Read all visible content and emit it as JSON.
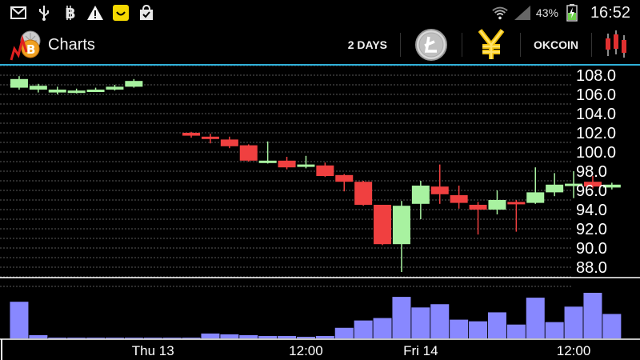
{
  "status_bar": {
    "battery_percent": "43%",
    "time": "16:52"
  },
  "action_bar": {
    "title": "Charts",
    "period_label": "2 DAYS",
    "exchange_label": "OKCOIN"
  },
  "chart_data": {
    "type": "candlestick",
    "yticks": [
      "108.0",
      "106.0",
      "104.0",
      "102.0",
      "100.0",
      "98.0",
      "96.0",
      "94.0",
      "92.0",
      "90.0",
      "88.0"
    ],
    "ylim": [
      86.0,
      109.0
    ],
    "xlabels": [
      "Thu 13",
      "12:00",
      "Fri 14",
      "12:00"
    ],
    "xlabel_positions": [
      7,
      15,
      21,
      29
    ],
    "candles": [
      {
        "i": 0,
        "open": 106.7,
        "close": 107.6,
        "high": 107.9,
        "low": 106.5
      },
      {
        "i": 1,
        "open": 106.5,
        "close": 106.9,
        "high": 107.1,
        "low": 106.2
      },
      {
        "i": 2,
        "open": 106.2,
        "close": 106.5,
        "high": 106.8,
        "low": 106.0
      },
      {
        "i": 3,
        "open": 106.2,
        "close": 106.4,
        "high": 106.6,
        "low": 106.1
      },
      {
        "i": 4,
        "open": 106.5,
        "close": 106.5,
        "high": 106.7,
        "low": 106.3
      },
      {
        "i": 5,
        "open": 106.5,
        "close": 106.8,
        "high": 107.0,
        "low": 106.4
      },
      {
        "i": 6,
        "open": 106.8,
        "close": 107.4,
        "high": 107.6,
        "low": 106.7
      },
      {
        "i": 7,
        "open": null
      },
      {
        "i": 8,
        "open": null
      },
      {
        "i": 9,
        "open": 102.0,
        "close": 101.7,
        "high": 102.1,
        "low": 101.5
      },
      {
        "i": 10,
        "open": 101.6,
        "close": 101.5,
        "high": 101.9,
        "low": 100.9
      },
      {
        "i": 11,
        "open": 101.3,
        "close": 100.6,
        "high": 101.6,
        "low": 100.4
      },
      {
        "i": 12,
        "open": 100.7,
        "close": 99.1,
        "high": 100.8,
        "low": 99.0
      },
      {
        "i": 13,
        "open": 99.0,
        "close": 99.1,
        "high": 101.1,
        "low": 98.8
      },
      {
        "i": 14,
        "open": 99.1,
        "close": 98.4,
        "high": 99.5,
        "low": 98.2
      },
      {
        "i": 15,
        "open": 98.5,
        "close": 98.7,
        "high": 99.6,
        "low": 98.3
      },
      {
        "i": 16,
        "open": 98.6,
        "close": 97.5,
        "high": 98.9,
        "low": 97.4
      },
      {
        "i": 17,
        "open": 97.6,
        "close": 96.9,
        "high": 97.7,
        "low": 95.9
      },
      {
        "i": 18,
        "open": 96.9,
        "close": 94.5,
        "high": 97.0,
        "low": 94.4
      },
      {
        "i": 19,
        "open": 94.5,
        "close": 90.4,
        "high": 94.5,
        "low": 90.3
      },
      {
        "i": 20,
        "open": 90.4,
        "close": 94.4,
        "high": 94.9,
        "low": 87.5
      },
      {
        "i": 21,
        "open": 94.6,
        "close": 96.5,
        "high": 97.0,
        "low": 93.0
      },
      {
        "i": 22,
        "open": 96.4,
        "close": 95.6,
        "high": 98.7,
        "low": 94.6
      },
      {
        "i": 23,
        "open": 95.5,
        "close": 94.7,
        "high": 96.5,
        "low": 94.1
      },
      {
        "i": 24,
        "open": 94.5,
        "close": 94.0,
        "high": 94.8,
        "low": 91.4
      },
      {
        "i": 25,
        "open": 94.0,
        "close": 95.0,
        "high": 96.0,
        "low": 93.5
      },
      {
        "i": 26,
        "open": 94.8,
        "close": 94.7,
        "high": 95.0,
        "low": 91.7
      },
      {
        "i": 27,
        "open": 94.7,
        "close": 95.8,
        "high": 98.4,
        "low": 94.6
      },
      {
        "i": 28,
        "open": 95.8,
        "close": 96.6,
        "high": 97.8,
        "low": 95.4
      },
      {
        "i": 29,
        "open": 96.6,
        "close": 96.7,
        "high": 98.0,
        "low": 95.2
      },
      {
        "i": 30,
        "open": 96.9,
        "close": 96.4,
        "high": 97.5,
        "low": 96.2
      },
      {
        "i": 31,
        "open": 96.3,
        "close": 96.6,
        "high": 96.8,
        "low": 96.1
      }
    ],
    "volumes": [
      45,
      4,
      1,
      1,
      1,
      1,
      1,
      1,
      1,
      1,
      6,
      5,
      4,
      3,
      3,
      2,
      3,
      13,
      22,
      25,
      51,
      38,
      42,
      23,
      21,
      32,
      17,
      50,
      20,
      39,
      56,
      30
    ],
    "volume_max": 56,
    "up_color": "#a8f2a0",
    "down_color": "#f04040",
    "volume_color": "#8888ff"
  }
}
